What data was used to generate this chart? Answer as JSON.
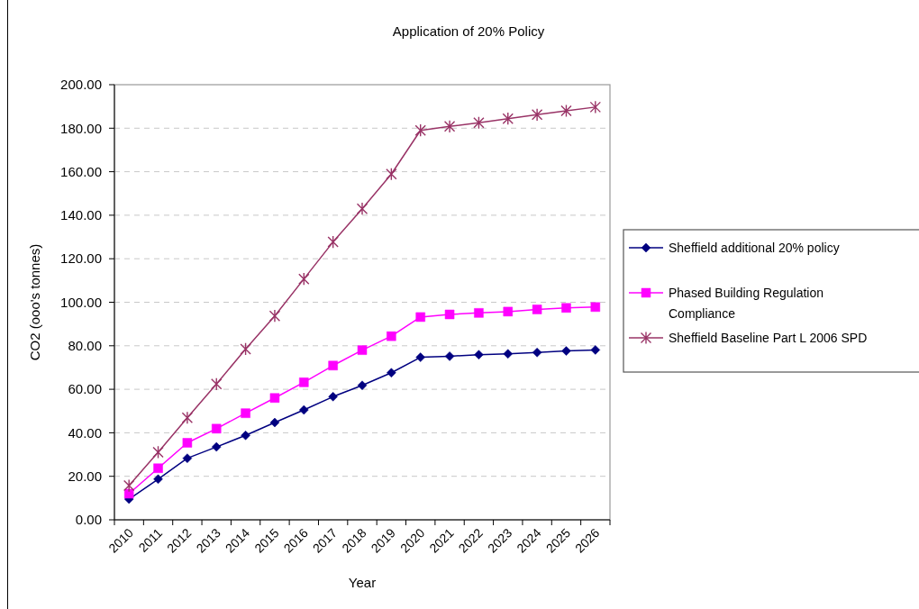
{
  "chart_data": {
    "type": "line",
    "title": "Application of 20% Policy",
    "xlabel": "Year",
    "ylabel": "CO2 (ooo's tonnes)",
    "categories": [
      "2010",
      "2011",
      "2012",
      "2013",
      "2014",
      "2015",
      "2016",
      "2017",
      "2018",
      "2019",
      "2020",
      "2021",
      "2022",
      "2023",
      "2024",
      "2025",
      "2026"
    ],
    "series": [
      {
        "name": "Sheffield additional 20% policy",
        "color": "#000080",
        "marker": "diamond",
        "values": [
          9.5,
          18.7,
          28.3,
          33.5,
          38.8,
          44.7,
          50.5,
          56.6,
          61.8,
          67.6,
          74.7,
          75.2,
          75.9,
          76.3,
          76.9,
          77.6,
          78.1
        ]
      },
      {
        "name": "Phased Building Regulation Compliance",
        "color": "#ff00ff",
        "marker": "square",
        "values": [
          12.0,
          23.7,
          35.4,
          41.9,
          49.0,
          56.0,
          63.2,
          70.9,
          78.0,
          84.4,
          93.2,
          94.4,
          95.1,
          95.7,
          96.7,
          97.4,
          97.8
        ]
      },
      {
        "name": "Sheffield Baseline Part L 2006 SPD",
        "color": "#993366",
        "marker": "cross",
        "values": [
          15.7,
          31.1,
          46.9,
          62.4,
          78.5,
          93.7,
          110.7,
          127.7,
          143.0,
          158.9,
          179.0,
          180.8,
          182.5,
          184.4,
          186.2,
          188.0,
          189.7
        ]
      }
    ],
    "ylim": [
      0,
      200
    ],
    "yticks": [
      {
        "value": 0,
        "label": "0.00"
      },
      {
        "value": 20,
        "label": "20.00"
      },
      {
        "value": 40,
        "label": "40.00"
      },
      {
        "value": 60,
        "label": "60.00"
      },
      {
        "value": 80,
        "label": "80.00"
      },
      {
        "value": 100,
        "label": "100.00"
      },
      {
        "value": 120,
        "label": "120.00"
      },
      {
        "value": 140,
        "label": "140.00"
      },
      {
        "value": 160,
        "label": "160.00"
      },
      {
        "value": 180,
        "label": "180.00"
      },
      {
        "value": 200,
        "label": "200.00"
      }
    ],
    "grid": "y",
    "legend": "right"
  }
}
